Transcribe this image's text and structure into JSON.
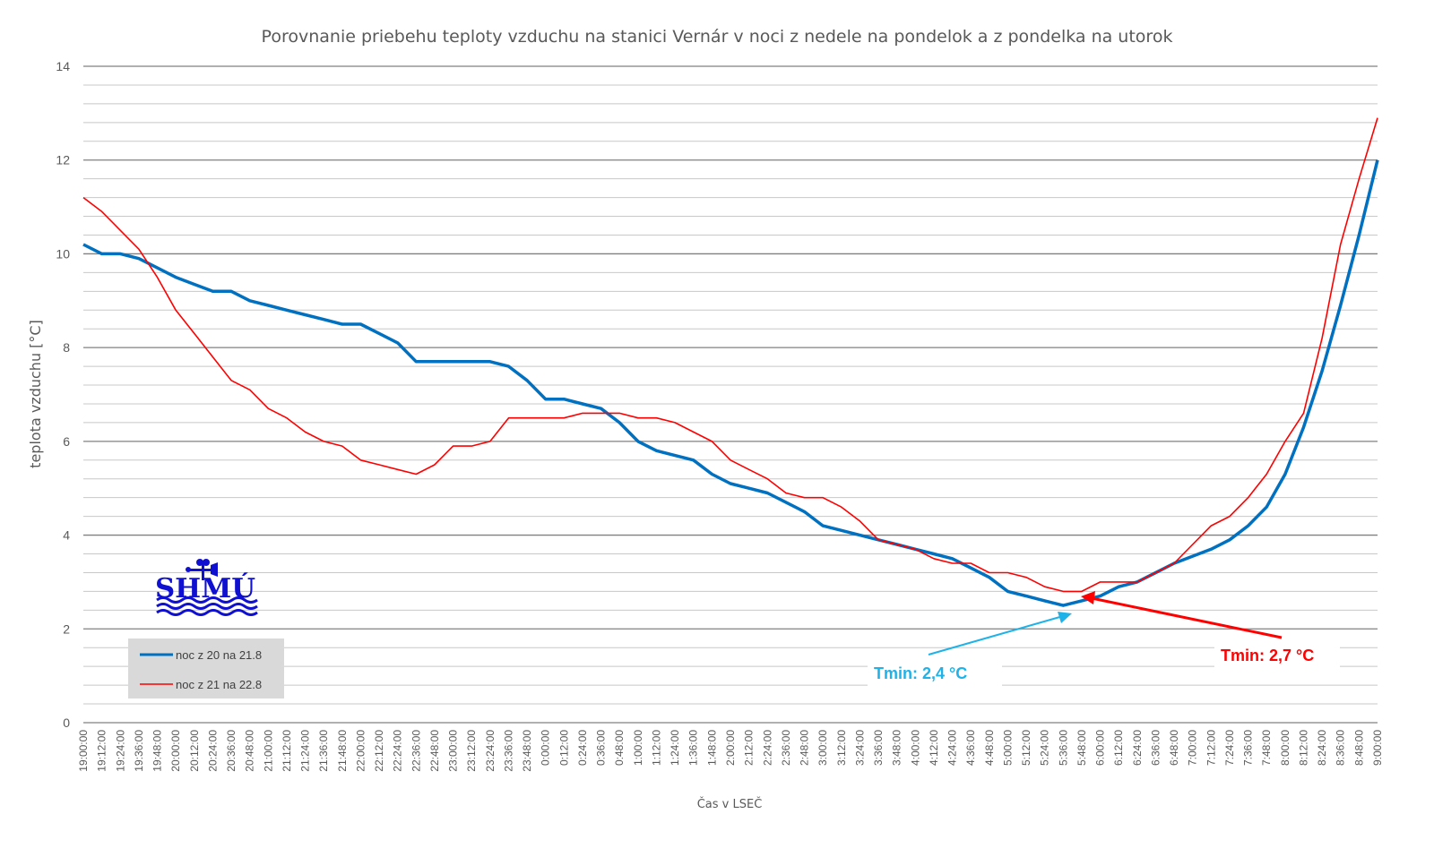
{
  "chart_data": {
    "type": "line",
    "title": "Porovnanie priebehu teploty vzduchu na stanici Vernár v noci z nedele na pondelok a z pondelka na utorok",
    "xlabel": "Čas v LSEČ",
    "ylabel": "teplota vzduchu [°C]",
    "ylim": [
      0,
      14
    ],
    "yticks": [
      0,
      2,
      4,
      6,
      8,
      10,
      12,
      14
    ],
    "y_minor_step": 0.4,
    "grid": true,
    "legend_position": "bottom-left",
    "x": [
      "19:00:00",
      "19:12:00",
      "19:24:00",
      "19:36:00",
      "19:48:00",
      "20:00:00",
      "20:12:00",
      "20:24:00",
      "20:36:00",
      "20:48:00",
      "21:00:00",
      "21:12:00",
      "21:24:00",
      "21:36:00",
      "21:48:00",
      "22:00:00",
      "22:12:00",
      "22:24:00",
      "22:36:00",
      "22:48:00",
      "23:00:00",
      "23:12:00",
      "23:24:00",
      "23:36:00",
      "23:48:00",
      "0:00:00",
      "0:12:00",
      "0:24:00",
      "0:36:00",
      "0:48:00",
      "1:00:00",
      "1:12:00",
      "1:24:00",
      "1:36:00",
      "1:48:00",
      "2:00:00",
      "2:12:00",
      "2:24:00",
      "2:36:00",
      "2:48:00",
      "3:00:00",
      "3:12:00",
      "3:24:00",
      "3:36:00",
      "3:48:00",
      "4:00:00",
      "4:12:00",
      "4:24:00",
      "4:36:00",
      "4:48:00",
      "5:00:00",
      "5:12:00",
      "5:24:00",
      "5:36:00",
      "5:48:00",
      "6:00:00",
      "6:12:00",
      "6:24:00",
      "6:36:00",
      "6:48:00",
      "7:00:00",
      "7:12:00",
      "7:24:00",
      "7:36:00",
      "7:48:00",
      "8:00:00",
      "8:12:00",
      "8:24:00",
      "8:36:00",
      "8:48:00",
      "9:00:00"
    ],
    "series": [
      {
        "name": "noc z 20 na 21.8",
        "color": "#0070C0",
        "values": [
          10.2,
          10.0,
          10.0,
          9.9,
          9.7,
          9.5,
          9.35,
          9.2,
          9.2,
          9.0,
          8.9,
          8.8,
          8.7,
          8.6,
          8.5,
          8.5,
          8.3,
          8.1,
          7.7,
          7.7,
          7.7,
          7.7,
          7.7,
          7.6,
          7.3,
          6.9,
          6.9,
          6.8,
          6.7,
          6.4,
          6.0,
          5.8,
          5.7,
          5.6,
          5.3,
          5.1,
          5.0,
          4.9,
          4.7,
          4.5,
          4.2,
          4.1,
          4.0,
          3.9,
          3.8,
          3.7,
          3.6,
          3.5,
          3.3,
          3.1,
          2.8,
          2.7,
          2.6,
          2.5,
          2.6,
          2.7,
          2.9,
          3.0,
          3.2,
          3.4,
          3.55,
          3.7,
          3.9,
          4.2,
          4.6,
          5.3,
          6.3,
          7.5,
          8.9,
          10.4,
          12.0
        ]
      },
      {
        "name": "noc z 21 na 22.8",
        "color": "#FF0000",
        "values": [
          11.2,
          10.9,
          10.5,
          10.1,
          9.5,
          8.8,
          8.3,
          7.8,
          7.3,
          7.1,
          6.7,
          6.5,
          6.2,
          6.0,
          5.9,
          5.6,
          5.5,
          5.4,
          5.3,
          5.5,
          5.9,
          5.9,
          6.0,
          6.5,
          6.5,
          6.5,
          6.5,
          6.6,
          6.6,
          6.6,
          6.5,
          6.5,
          6.4,
          6.2,
          6.0,
          5.6,
          5.4,
          5.2,
          4.9,
          4.8,
          4.8,
          4.6,
          4.3,
          3.9,
          3.8,
          3.7,
          3.5,
          3.4,
          3.4,
          3.2,
          3.2,
          3.1,
          2.9,
          2.8,
          2.8,
          3.0,
          3.0,
          3.0,
          3.2,
          3.4,
          3.8,
          4.2,
          4.4,
          4.8,
          5.3,
          6.0,
          6.6,
          8.2,
          10.2,
          11.6,
          12.9
        ]
      }
    ],
    "annotations": [
      {
        "text": "Tmin: 2,4 °C",
        "color": "#1FB2E8",
        "target_time": "5:46:00",
        "target_value": 2.4
      },
      {
        "text": "Tmin: 2,7 °C",
        "color": "#FF0000",
        "target_time": "5:48:00",
        "target_value": 2.7
      }
    ]
  },
  "logo": {
    "text": "SHMÚ",
    "color": "#1010D0"
  }
}
